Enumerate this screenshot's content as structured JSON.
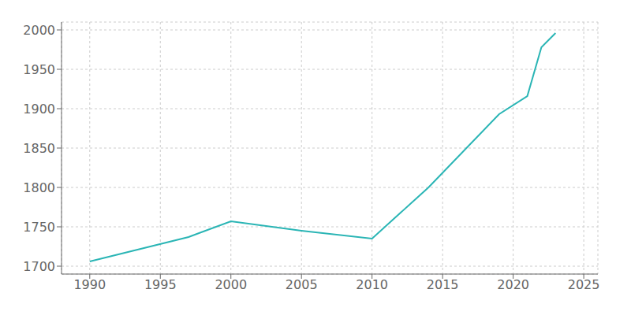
{
  "chart_data": {
    "type": "line",
    "x": [
      1990,
      1997,
      2000,
      2005,
      2010,
      2014,
      2019,
      2021,
      2022,
      2023
    ],
    "values": [
      1706,
      1737,
      1757,
      1745,
      1735,
      1800,
      1893,
      1916,
      1978,
      1996
    ],
    "color": "#2ab5b5",
    "xlim": [
      1988,
      2026
    ],
    "ylim": [
      1690,
      2010
    ],
    "xticks": [
      1990,
      1995,
      2000,
      2005,
      2010,
      2015,
      2020,
      2025
    ],
    "yticks": [
      1700,
      1750,
      1800,
      1850,
      1900,
      1950,
      2000
    ],
    "grid": true
  }
}
